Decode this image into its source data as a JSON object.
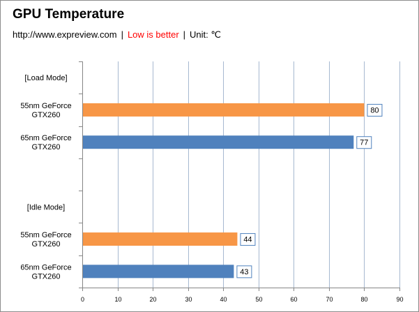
{
  "chart_data": {
    "type": "bar",
    "orientation": "horizontal",
    "title": "GPU Temperature",
    "subtitle": {
      "source": "http://www.expreview.com",
      "note": "Low is better",
      "unit": "Unit: ℃"
    },
    "categories": [
      "[Load Mode]",
      "55nm GeForce GTX260",
      "65nm GeForce GTX260",
      "",
      "[Idle Mode]",
      "55nm GeForce GTX260",
      "65nm GeForce GTX260"
    ],
    "values": [
      null,
      80,
      77,
      null,
      null,
      44,
      43
    ],
    "bar_colors": [
      "",
      "#F79646",
      "#4F81BD",
      "",
      "",
      "#F79646",
      "#4F81BD"
    ],
    "xlim": [
      0,
      90
    ],
    "xticks": [
      0,
      10,
      20,
      30,
      40,
      50,
      60,
      70,
      80,
      90
    ],
    "grid": true,
    "data_labels": true
  },
  "colors": {
    "note": "#FF0000",
    "grid": "#A6B8D0",
    "axis": "#868686",
    "label_border": "#4F81BD"
  }
}
